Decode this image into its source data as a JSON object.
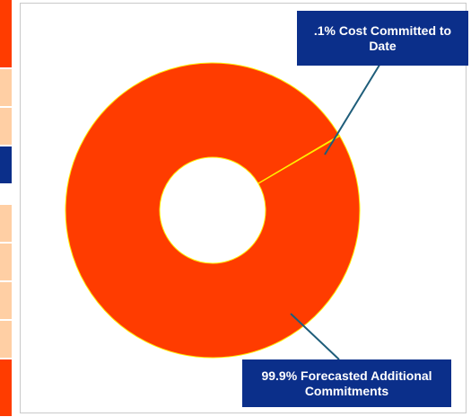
{
  "chart_data": {
    "type": "pie",
    "style": "donut",
    "slices": [
      {
        "label": ".1% Cost Committed to Date",
        "percent": 0.1,
        "color": "#ff3c00"
      },
      {
        "label": "99.9% Forecasted Additional Commitments",
        "percent": 99.9,
        "color": "#ff3c00"
      }
    ],
    "slice_border_color": "#ffee00",
    "callout_color": "#0b2f8a",
    "leader_line_color": "#1e5d7a"
  },
  "callouts": {
    "committed": ".1% Cost Committed to Date",
    "forecasted": "99.9% Forecasted Additional Commitments"
  },
  "left_strip": {
    "colors": [
      "#ff3c00",
      "#ffcfa4",
      "#ffcfa4",
      "#0b2f8a",
      "#ffcfa4",
      "#ffcfa4",
      "#ffcfa4",
      "#ffcfa4",
      "#ff3c00"
    ]
  }
}
